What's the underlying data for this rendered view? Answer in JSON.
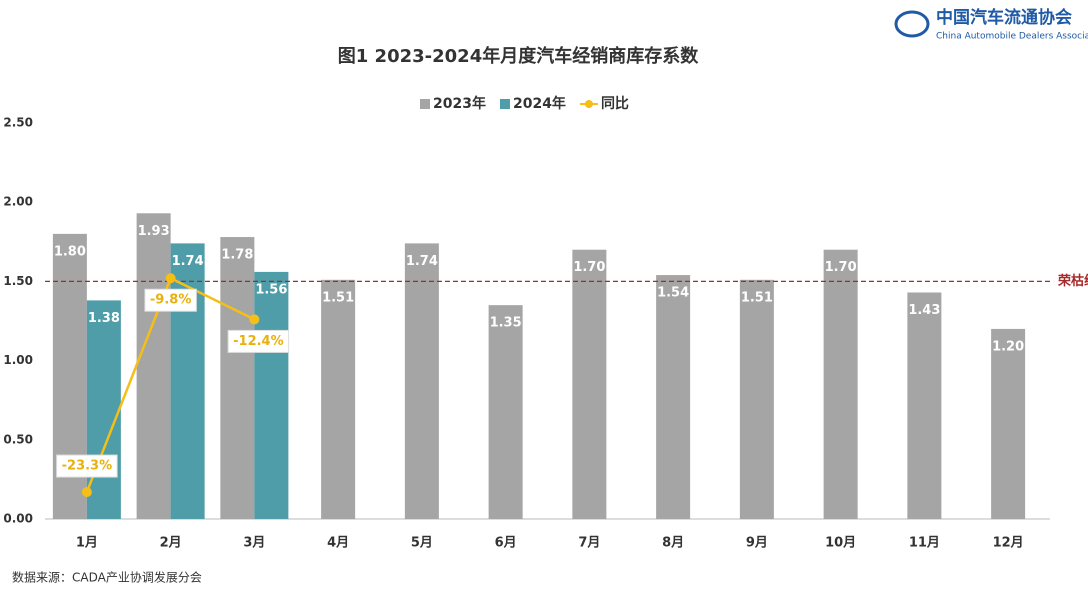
{
  "header": {
    "org_name": "中国汽车流通协会",
    "org_name_en": "China Automobile Dealers Association"
  },
  "chart_data": {
    "type": "bar",
    "title": "图1  2023-2024年月度汽车经销商库存系数",
    "categories": [
      "1月",
      "2月",
      "3月",
      "4月",
      "5月",
      "6月",
      "7月",
      "8月",
      "9月",
      "10月",
      "11月",
      "12月"
    ],
    "series": [
      {
        "name": "2023年",
        "color": "#a5a5a5",
        "values": [
          1.8,
          1.93,
          1.78,
          1.51,
          1.74,
          1.35,
          1.7,
          1.54,
          1.51,
          1.7,
          1.43,
          1.2
        ],
        "value_labels": [
          "1.80",
          "1.93",
          "1.78",
          "1.51",
          "1.74",
          "1.35",
          "1.70",
          "1.54",
          "1.51",
          "1.70",
          "1.43",
          "1.20"
        ]
      },
      {
        "name": "2024年",
        "color": "#4e9da8",
        "values": [
          1.38,
          1.74,
          1.56,
          null,
          null,
          null,
          null,
          null,
          null,
          null,
          null,
          null
        ],
        "value_labels": [
          "1.38",
          "1.74",
          "1.56",
          null,
          null,
          null,
          null,
          null,
          null,
          null,
          null,
          null
        ]
      },
      {
        "name": "同比",
        "type": "line",
        "axis": "y2",
        "color": "#f5bf17",
        "values": [
          -23.3,
          -9.8,
          -12.4,
          null,
          null,
          null,
          null,
          null,
          null,
          null,
          null,
          null
        ],
        "value_labels": [
          "-23.3%",
          "-9.8%",
          "-12.4%",
          null,
          null,
          null,
          null,
          null,
          null,
          null,
          null,
          null
        ]
      }
    ],
    "ylim": [
      0,
      2.5
    ],
    "yticks": [
      {
        "value": 0,
        "label": "0.00"
      },
      {
        "value": 0.5,
        "label": "0.50"
      },
      {
        "value": 1,
        "label": "1.00"
      },
      {
        "value": 1.5,
        "label": "1.50"
      },
      {
        "value": 2,
        "label": "2.00"
      },
      {
        "value": 2.5,
        "label": "2.50"
      }
    ],
    "y2lim": [
      -25,
      0
    ],
    "reference_line": {
      "value": 1.5,
      "label": "荣枯线",
      "color": "#a52a2a"
    },
    "legend": "top",
    "source": "数据来源：CADA产业协调发展分会"
  }
}
